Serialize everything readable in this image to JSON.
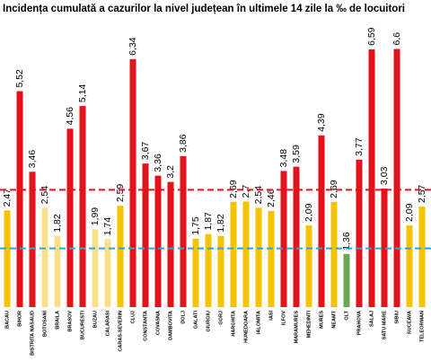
{
  "chart_data": {
    "type": "bar",
    "title": "Incidența cumulată a cazurilor la nivel județean în ultimele 14 zile la ‰ de locuitori",
    "categories": [
      "BACAU",
      "BIHOR",
      "BISTRITA NASAUD",
      "BOTOSANI",
      "BRAILA",
      "BRASOV",
      "BUCURESTI",
      "BUZAU",
      "CALARASI",
      "CARAS-SEVERIN",
      "CLUJ",
      "CONSTANTA",
      "COVASNA",
      "DAMBOVITA",
      "DOLJ",
      "GALATI",
      "GIURGIU",
      "GORJ",
      "HARGHITA",
      "HUNEDOARA",
      "IALOMITA",
      "IASI",
      "ILFOV",
      "MARAMURES",
      "MEHEDINTI",
      "MURES",
      "NEAMT",
      "OLT",
      "PRAHOVA",
      "SALAJ",
      "SATU MARE",
      "SIBIU",
      "SUCEAVA",
      "TELEORMAN"
    ],
    "values": [
      2.47,
      5.52,
      3.46,
      2.54,
      1.82,
      4.56,
      5.14,
      1.99,
      1.74,
      2.59,
      6.34,
      3.67,
      3.36,
      3.2,
      3.86,
      1.75,
      1.87,
      1.82,
      2.69,
      2.7,
      2.54,
      2.46,
      3.48,
      3.59,
      2.09,
      4.39,
      2.69,
      1.36,
      3.77,
      6.59,
      3.03,
      6.6,
      2.09,
      2.57
    ],
    "value_labels": [
      "2,47",
      "5,52",
      "3,46",
      "2,54",
      "1,82",
      "4,56",
      "5,14",
      "1,99",
      "1,74",
      "2,59",
      "6,34",
      "3,67",
      "3,36",
      "3,2",
      "3,86",
      "1,75",
      "1,87",
      "1,82",
      "2,69",
      "2,7",
      "2,54",
      "2,46",
      "3,48",
      "3,59",
      "2,09",
      "4,39",
      "2,69",
      "1,36",
      "3,77",
      "6,59",
      "3,03",
      "6,6",
      "2,09",
      "2,57"
    ],
    "colors": [
      "#f5c400",
      "#e3121b",
      "#e3121b",
      "#fbe08c",
      "#fbe08c",
      "#e3121b",
      "#e3121b",
      "#fbe08c",
      "#fbe08c",
      "#f5c400",
      "#e3121b",
      "#e3121b",
      "#e3121b",
      "#e3121b",
      "#e3121b",
      "#f5c400",
      "#f5c400",
      "#f5c400",
      "#f5c400",
      "#f5c400",
      "#f5c400",
      "#f5c400",
      "#e3121b",
      "#e3121b",
      "#f5c400",
      "#e3121b",
      "#f5c400",
      "#6aa84f",
      "#e3121b",
      "#e3121b",
      "#e3121b",
      "#e3121b",
      "#f5c400",
      "#f5c400"
    ],
    "ylim": [
      0,
      7.3
    ],
    "thresholds": [
      {
        "value": 3,
        "color": "#e3121b"
      },
      {
        "value": 1.5,
        "color": "#2aa6d8"
      }
    ]
  }
}
